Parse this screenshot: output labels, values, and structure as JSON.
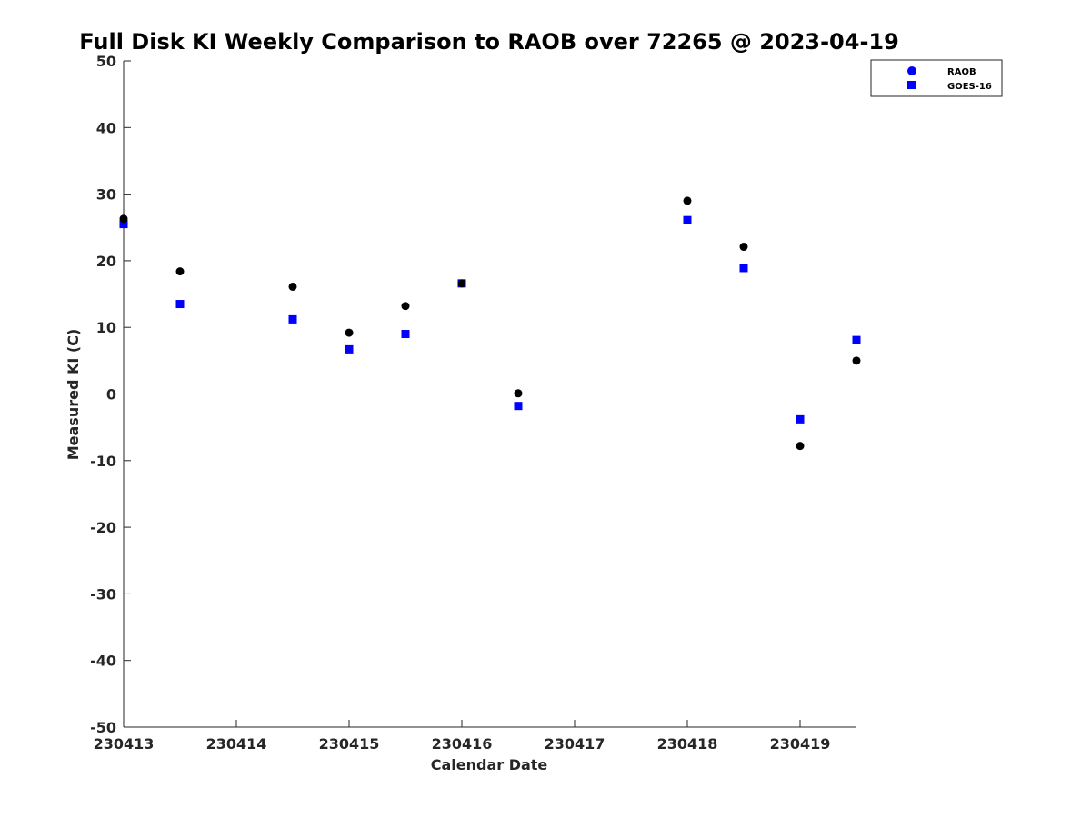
{
  "chart_data": {
    "type": "scatter",
    "title": "Full Disk KI Weekly Comparison to RAOB over 72265 @ 2023-04-19",
    "xlabel": "Calendar Date",
    "ylabel": "Measured KI (C)",
    "xlim": [
      0,
      6.5
    ],
    "ylim": [
      -50,
      50
    ],
    "x_ticks": [
      0,
      1,
      2,
      3,
      4,
      5,
      6
    ],
    "x_tick_labels": [
      "230413",
      "230414",
      "230415",
      "230416",
      "230417",
      "230418",
      "230419"
    ],
    "y_ticks": [
      -50,
      -40,
      -30,
      -20,
      -10,
      0,
      10,
      20,
      30,
      40,
      50
    ],
    "y_tick_labels": [
      "-50",
      "-40",
      "-30",
      "-20",
      "-10",
      "0",
      "10",
      "20",
      "30",
      "40",
      "50"
    ],
    "grid": false,
    "legend_position": "top-right",
    "series": [
      {
        "name": "RAOB",
        "marker": "circle",
        "color": "#0000ff",
        "point_color": "#000000",
        "x": [
          0,
          0.5,
          1.5,
          2,
          2.5,
          3,
          3.5,
          5,
          5.5,
          6,
          6.5
        ],
        "y": [
          26.3,
          18.4,
          16.1,
          9.2,
          13.2,
          16.6,
          0.1,
          29.0,
          22.1,
          -7.8,
          5.0
        ]
      },
      {
        "name": "GOES-16",
        "marker": "square",
        "color": "#0000ff",
        "point_color": "#0000ff",
        "x": [
          0,
          0.5,
          1.5,
          2,
          2.5,
          3,
          3.5,
          5,
          5.5,
          6,
          6.5
        ],
        "y": [
          25.5,
          13.5,
          11.2,
          6.7,
          9.0,
          16.6,
          -1.8,
          26.1,
          18.9,
          -3.8,
          8.1
        ]
      }
    ]
  }
}
